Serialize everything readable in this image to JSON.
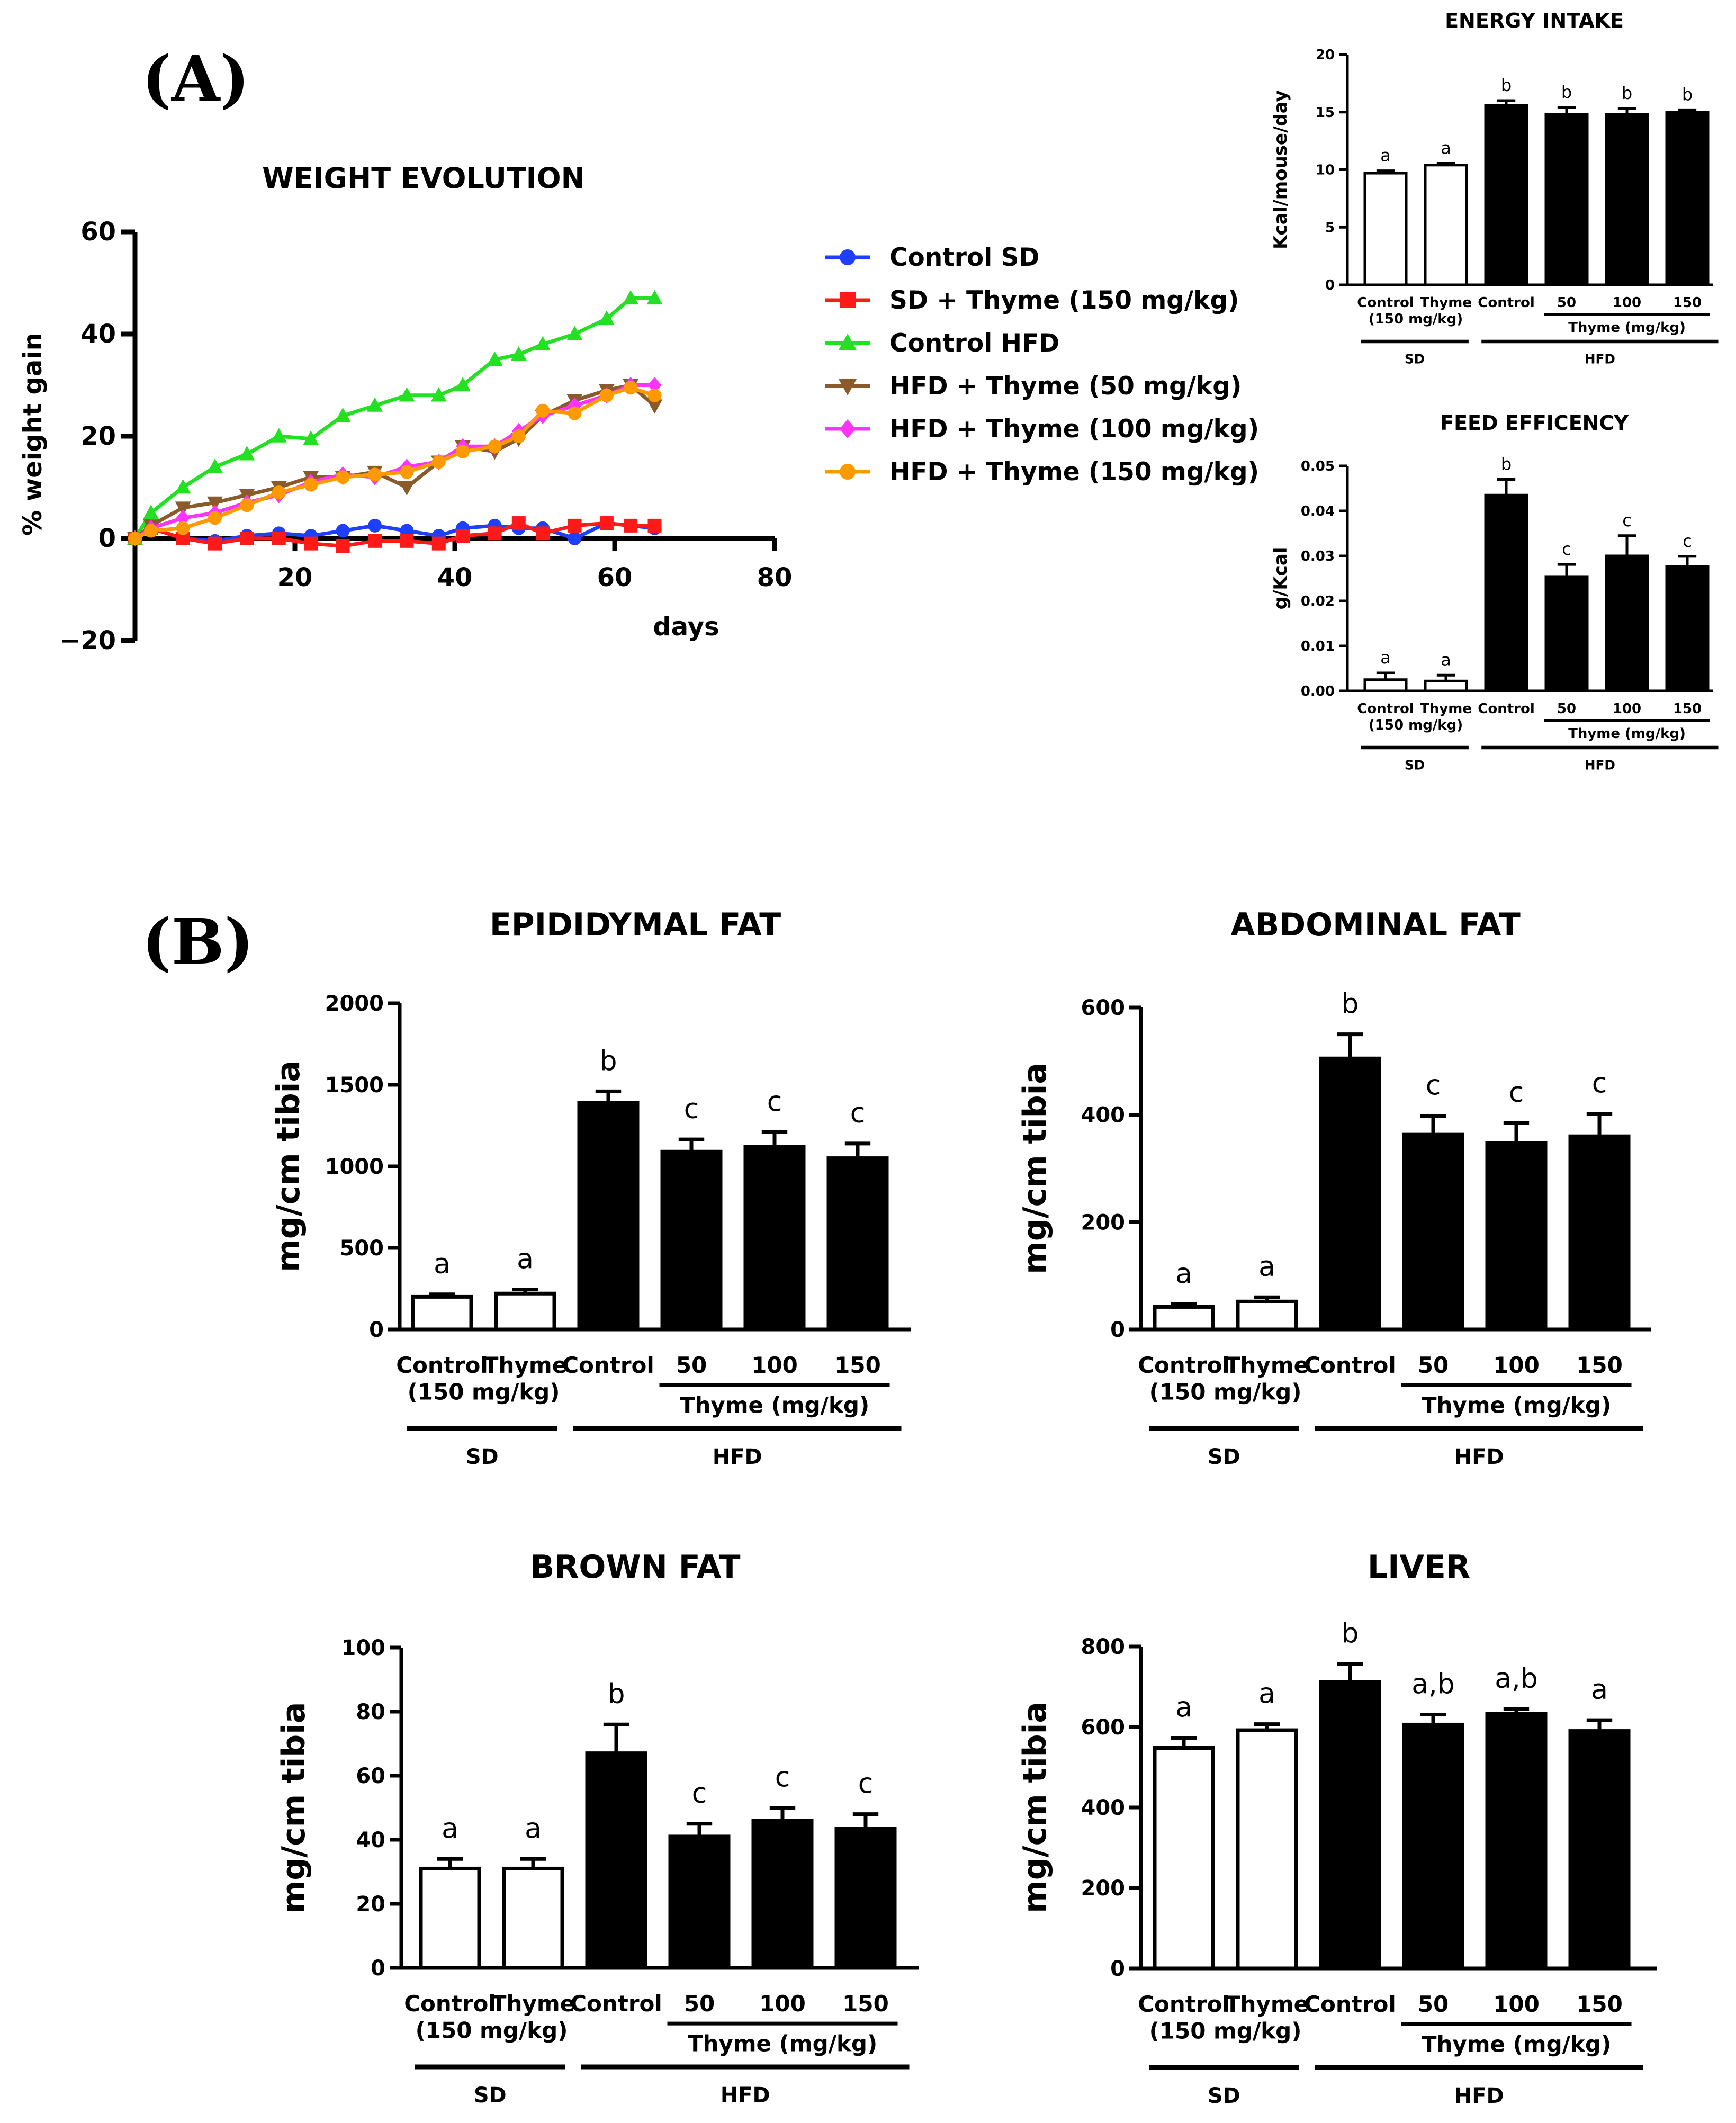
{
  "panel_labels": {
    "a": "(A)",
    "b": "(B)"
  },
  "chart_data": [
    {
      "id": "weight",
      "type": "line",
      "title": "WEIGHT EVOLUTION",
      "xlabel": "days",
      "ylabel": "% weight gain",
      "xlim": [
        0,
        80
      ],
      "ylim": [
        -20,
        60
      ],
      "xticks": [
        "20",
        "40",
        "60",
        "80"
      ],
      "yticks": [
        "−20",
        "0",
        "20",
        "40",
        "60"
      ],
      "series": [
        {
          "name": "Control SD",
          "color": "#1f3fff",
          "marker": "circle",
          "x": [
            0,
            2,
            6,
            10,
            14,
            18,
            22,
            26,
            30,
            34,
            38,
            41,
            45,
            48,
            51,
            55,
            59,
            62,
            65
          ],
          "y": [
            0,
            2,
            0,
            -0.5,
            0.5,
            1,
            0.5,
            1.5,
            2.5,
            1.5,
            0.5,
            2,
            2.5,
            2,
            2,
            0,
            3,
            2.5,
            2
          ]
        },
        {
          "name": "SD + Thyme (150 mg/kg)",
          "color": "#ff1a1a",
          "marker": "square",
          "x": [
            0,
            2,
            6,
            10,
            14,
            18,
            22,
            26,
            30,
            34,
            38,
            41,
            45,
            48,
            51,
            55,
            59,
            62,
            65
          ],
          "y": [
            0,
            2,
            0,
            -1,
            0,
            0,
            -1,
            -1.5,
            -0.5,
            -0.5,
            -1,
            0.5,
            1,
            3,
            1,
            2.5,
            3,
            2.5,
            2.5
          ]
        },
        {
          "name": "Control HFD",
          "color": "#22e022",
          "marker": "triangle-up",
          "x": [
            0,
            2,
            6,
            10,
            14,
            18,
            22,
            26,
            30,
            34,
            38,
            41,
            45,
            48,
            51,
            55,
            59,
            62,
            65
          ],
          "y": [
            0,
            5,
            10,
            14,
            16.5,
            20,
            19.5,
            24,
            26,
            28,
            28,
            30,
            35,
            36,
            38,
            40,
            43,
            47,
            47
          ]
        },
        {
          "name": "HFD + Thyme (50 mg/kg)",
          "color": "#8b5a2b",
          "marker": "triangle-down",
          "x": [
            0,
            2,
            6,
            10,
            14,
            18,
            22,
            26,
            30,
            34,
            38,
            41,
            45,
            48,
            51,
            55,
            59,
            62,
            65
          ],
          "y": [
            0,
            2.5,
            6,
            7,
            8.5,
            10,
            12,
            12,
            13,
            10,
            15,
            18,
            17,
            19.5,
            24,
            27,
            29,
            30,
            26
          ]
        },
        {
          "name": "HFD + Thyme (100 mg/kg)",
          "color": "#ff33ff",
          "marker": "diamond",
          "x": [
            0,
            2,
            6,
            10,
            14,
            18,
            22,
            26,
            30,
            34,
            38,
            41,
            45,
            48,
            51,
            55,
            59,
            62,
            65
          ],
          "y": [
            0,
            2,
            4,
            5,
            7,
            8.5,
            11,
            12.5,
            12,
            14,
            15,
            18,
            18,
            21,
            24,
            26,
            28,
            30,
            30
          ]
        },
        {
          "name": "HFD + Thyme (150 mg/kg)",
          "color": "#ff9900",
          "marker": "circle",
          "x": [
            0,
            2,
            6,
            10,
            14,
            18,
            22,
            26,
            30,
            34,
            38,
            41,
            45,
            48,
            51,
            55,
            59,
            62,
            65
          ],
          "y": [
            0,
            1.5,
            2,
            4,
            6.5,
            9,
            10.5,
            12,
            12.5,
            13,
            15,
            17,
            18,
            20,
            25,
            24.5,
            28,
            29.5,
            28
          ]
        }
      ]
    },
    {
      "id": "energy",
      "type": "bar",
      "title": "ENERGY INTAKE",
      "ylabel": "Kcal/mouse/day",
      "ylim": [
        0,
        20
      ],
      "yticks": [
        "0",
        "5",
        "10",
        "15",
        "20"
      ],
      "categories": [
        "Control",
        "Thyme",
        "Control",
        "50",
        "100",
        "150"
      ],
      "subnotes": {
        "thyme_dose": "(150 mg/kg)",
        "thyme_group": "Thyme (mg/kg)",
        "sd": "SD",
        "hfd": "HFD"
      },
      "values": [
        9.7,
        10.4,
        15.6,
        14.8,
        14.8,
        15.0
      ],
      "errors": [
        0.2,
        0.15,
        0.4,
        0.6,
        0.5,
        0.2
      ],
      "letters": [
        "a",
        "a",
        "b",
        "b",
        "b",
        "b"
      ],
      "fills": [
        "white",
        "white",
        "black",
        "black",
        "black",
        "black"
      ]
    },
    {
      "id": "feed",
      "type": "bar",
      "title": "FEED EFFICENCY",
      "ylabel": "g/Kcal",
      "ylim": [
        0,
        0.05
      ],
      "yticks": [
        "0.00",
        "0.01",
        "0.02",
        "0.03",
        "0.04",
        "0.05"
      ],
      "categories": [
        "Control",
        "Thyme",
        "Control",
        "50",
        "100",
        "150"
      ],
      "subnotes": {
        "thyme_dose": "(150 mg/kg)",
        "thyme_group": "Thyme (mg/kg)",
        "sd": "SD",
        "hfd": "HFD"
      },
      "values": [
        0.0025,
        0.0022,
        0.0435,
        0.0253,
        0.03,
        0.0277
      ],
      "errors": [
        0.0015,
        0.0013,
        0.0035,
        0.0028,
        0.0045,
        0.0022
      ],
      "letters": [
        "a",
        "a",
        "b",
        "c",
        "c",
        "c"
      ],
      "fills": [
        "white",
        "white",
        "black",
        "black",
        "black",
        "black"
      ]
    },
    {
      "id": "epi",
      "type": "bar",
      "title": "EPIDIDYMAL FAT",
      "ylabel": "mg/cm tibia",
      "ylim": [
        0,
        2000
      ],
      "yticks": [
        "0",
        "500",
        "1000",
        "1500",
        "2000"
      ],
      "categories": [
        "Control",
        "Thyme",
        "Control",
        "50",
        "100",
        "150"
      ],
      "subnotes": {
        "thyme_dose": "(150 mg/kg)",
        "thyme_group": "Thyme (mg/kg)",
        "sd": "SD",
        "hfd": "HFD"
      },
      "values": [
        200,
        220,
        1390,
        1090,
        1120,
        1050
      ],
      "errors": [
        15,
        25,
        70,
        75,
        90,
        90
      ],
      "letters": [
        "a",
        "a",
        "b",
        "c",
        "c",
        "c"
      ],
      "fills": [
        "white",
        "white",
        "black",
        "black",
        "black",
        "black"
      ]
    },
    {
      "id": "abd",
      "type": "bar",
      "title": "ABDOMINAL FAT",
      "ylabel": "mg/cm tibia",
      "ylim": [
        0,
        600
      ],
      "yticks": [
        "0",
        "200",
        "400",
        "600"
      ],
      "categories": [
        "Control",
        "Thyme",
        "Control",
        "50",
        "100",
        "150"
      ],
      "subnotes": {
        "thyme_dose": "(150 mg/kg)",
        "thyme_group": "Thyme (mg/kg)",
        "sd": "SD",
        "hfd": "HFD"
      },
      "values": [
        42,
        52,
        505,
        363,
        347,
        360
      ],
      "errors": [
        5,
        8,
        45,
        35,
        38,
        42
      ],
      "letters": [
        "a",
        "a",
        "b",
        "c",
        "c",
        "c"
      ],
      "fills": [
        "white",
        "white",
        "black",
        "black",
        "black",
        "black"
      ]
    },
    {
      "id": "brown",
      "type": "bar",
      "title": "BROWN FAT",
      "ylabel": "mg/cm tibia",
      "ylim": [
        0,
        100
      ],
      "yticks": [
        "0",
        "20",
        "40",
        "60",
        "80",
        "100"
      ],
      "categories": [
        "Control",
        "Thyme",
        "Control",
        "50",
        "100",
        "150"
      ],
      "subnotes": {
        "thyme_dose": "(150 mg/kg)",
        "thyme_group": "Thyme (mg/kg)",
        "sd": "SD",
        "hfd": "HFD"
      },
      "values": [
        31,
        31,
        67,
        41,
        46,
        43.5
      ],
      "errors": [
        3,
        3,
        9,
        4,
        4,
        4.5
      ],
      "letters": [
        "a",
        "a",
        "b",
        "c",
        "c",
        "c"
      ],
      "fills": [
        "white",
        "white",
        "black",
        "black",
        "black",
        "black"
      ]
    },
    {
      "id": "liver",
      "type": "bar",
      "title": "LIVER",
      "ylabel": "mg/cm tibia",
      "ylim": [
        0,
        800
      ],
      "yticks": [
        "0",
        "200",
        "400",
        "600",
        "800"
      ],
      "categories": [
        "Control",
        "Thyme",
        "Control",
        "50",
        "100",
        "150"
      ],
      "subnotes": {
        "thyme_dose": "(150 mg/kg)",
        "thyme_group": "Thyme (mg/kg)",
        "sd": "SD",
        "hfd": "HFD"
      },
      "values": [
        548,
        592,
        712,
        606,
        633,
        590
      ],
      "errors": [
        25,
        15,
        45,
        25,
        12,
        27
      ],
      "letters": [
        "a",
        "a",
        "b",
        "a,b",
        "a,b",
        "a"
      ],
      "fills": [
        "white",
        "white",
        "black",
        "black",
        "black",
        "black"
      ]
    }
  ]
}
